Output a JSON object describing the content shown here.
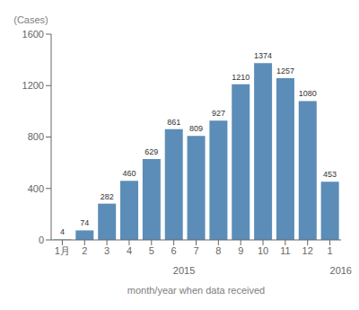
{
  "chart_data": {
    "type": "bar",
    "categories": [
      "1月",
      "2",
      "3",
      "4",
      "5",
      "6",
      "7",
      "8",
      "9",
      "10",
      "11",
      "12",
      "1"
    ],
    "values": [
      4,
      74,
      282,
      460,
      629,
      861,
      809,
      927,
      1210,
      1374,
      1257,
      1080,
      453
    ],
    "color": "#5b8db8",
    "ylim": [
      0,
      1600
    ],
    "yticks": [
      0,
      400,
      800,
      1200,
      1600
    ],
    "ylabel": "(Cases)",
    "xlabel": "month/year when data received",
    "annotations": [
      {
        "text": "2015",
        "x": 5.5
      },
      {
        "text": "2016",
        "x": 12
      }
    ],
    "data_labels": true,
    "grid": false
  }
}
